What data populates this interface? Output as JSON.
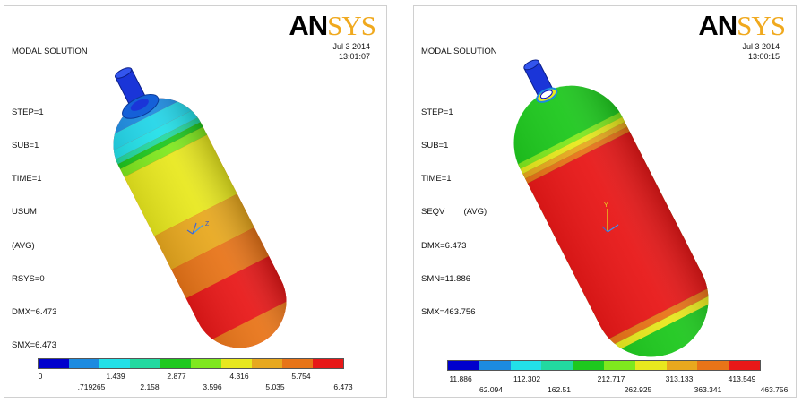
{
  "left_panel": {
    "title_lines": [
      "MODAL SOLUTION",
      "STEP=1",
      "SUB=1",
      "TIME=1",
      "USUM",
      "(AVG)",
      "RSYS=0",
      "DMX=6.473",
      "SMX=6.473"
    ],
    "date": "Jul 3 2014",
    "time": "13:01:07",
    "logo_an": "AN",
    "logo_sys": "SYS",
    "axis_label": "Z",
    "legend_colors": [
      "#0000cd",
      "#1c8be0",
      "#22e0e8",
      "#22d9a0",
      "#1ec81e",
      "#7fe81e",
      "#e8e81e",
      "#e8a81e",
      "#e87418",
      "#e81818"
    ],
    "legend_top": [
      "0",
      "1.439",
      "2.877",
      "4.316",
      "5.754"
    ],
    "legend_bottom": [
      ".719265",
      "2.158",
      "3.596",
      "5.035",
      "6.473"
    ]
  },
  "right_panel": {
    "title_lines": [
      "MODAL SOLUTION",
      "STEP=1",
      "SUB=1",
      "TIME=1",
      "SEQV        (AVG)",
      "DMX=6.473",
      "SMN=11.886",
      "SMX=463.756"
    ],
    "date": "Jul 3 2014",
    "time": "13:00:15",
    "logo_an": "AN",
    "logo_sys": "SYS",
    "axis_label": "Y",
    "legend_colors": [
      "#0000cd",
      "#1c8be0",
      "#22e0e8",
      "#22d9a0",
      "#1ec81e",
      "#7fe81e",
      "#e8e81e",
      "#e8a81e",
      "#e87418",
      "#e81818"
    ],
    "legend_top": [
      "11.886",
      "112.302",
      "212.717",
      "313.133",
      "413.549"
    ],
    "legend_bottom": [
      "62.094",
      "162.51",
      "262.925",
      "363.341",
      "463.756"
    ]
  }
}
